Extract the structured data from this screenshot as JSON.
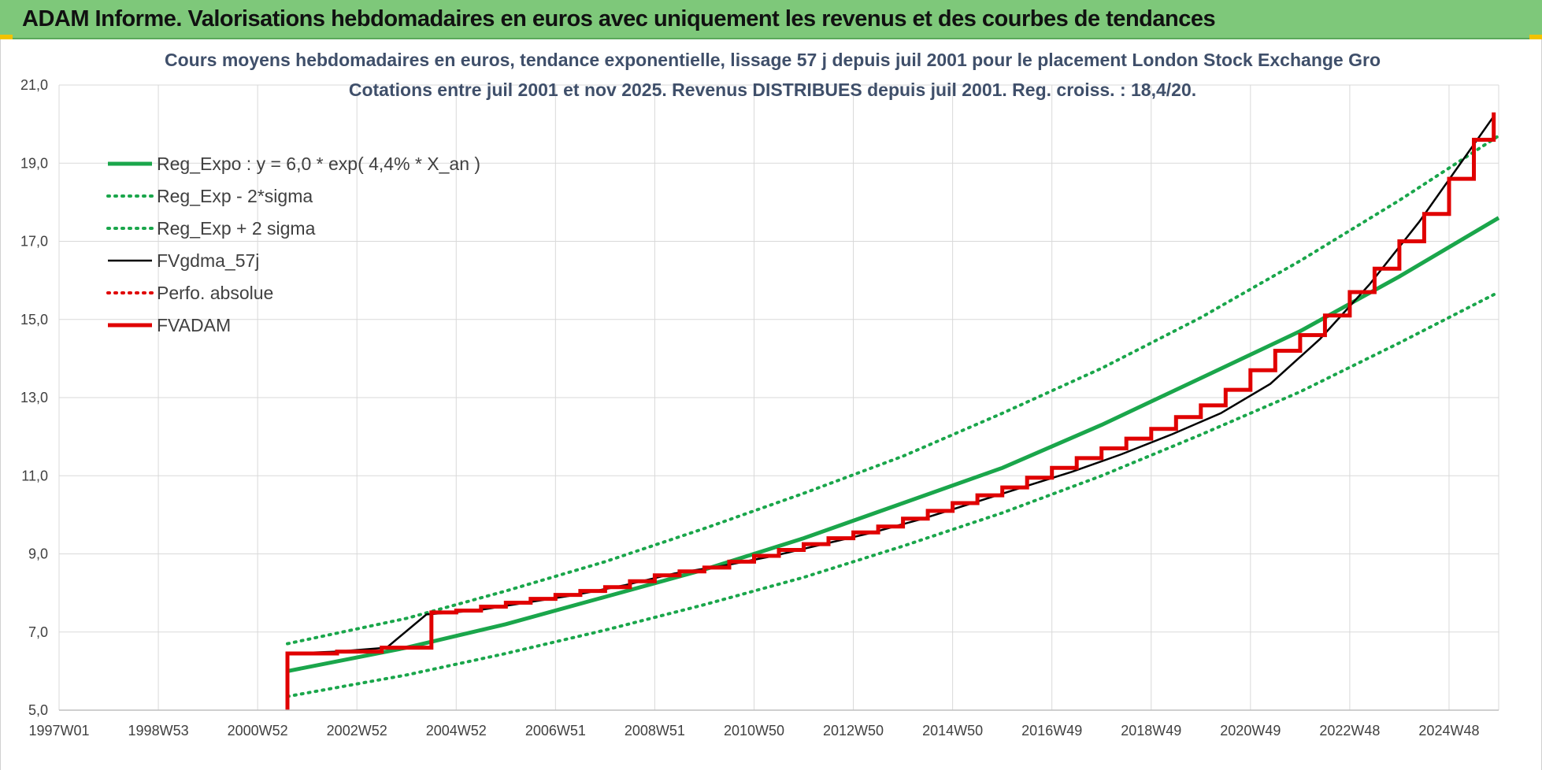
{
  "banner": {
    "title": "ADAM Informe. Valorisations hebdomadaires en euros avec uniquement les revenus et des courbes de tendances"
  },
  "colors": {
    "banner_bg": "#7ec87a",
    "reg_expo": "#1aa64b",
    "black": "#000000",
    "red": "#e00000",
    "grid": "#d9d9d9"
  },
  "chart_data": {
    "type": "line",
    "title": "Cours moyens hebdomadaires en euros, tendance exponentielle, lissage 57 j depuis juil 2001 pour le placement London Stock Exchange Gro",
    "subtitle": "Cotations entre juil 2001 et nov 2025. Revenus DISTRIBUES depuis juil 2001. Reg. croiss. : 18,4/20.",
    "xlabel": "",
    "ylabel": "",
    "xlim": [
      1997.0,
      2026.0
    ],
    "ylim": [
      5.0,
      21.0
    ],
    "grid": true,
    "legend_position": "top-left",
    "y_ticks": [
      "5,0",
      "7,0",
      "9,0",
      "11,0",
      "13,0",
      "15,0",
      "17,0",
      "19,0",
      "21,0"
    ],
    "x_ticks": [
      {
        "label": "1997W01",
        "x": 1997.0
      },
      {
        "label": "1998W53",
        "x": 1999.0
      },
      {
        "label": "2000W52",
        "x": 2001.0
      },
      {
        "label": "2002W52",
        "x": 2003.0
      },
      {
        "label": "2004W52",
        "x": 2005.0
      },
      {
        "label": "2006W51",
        "x": 2007.0
      },
      {
        "label": "2008W51",
        "x": 2009.0
      },
      {
        "label": "2010W50",
        "x": 2011.0
      },
      {
        "label": "2012W50",
        "x": 2013.0
      },
      {
        "label": "2014W50",
        "x": 2015.0
      },
      {
        "label": "2016W49",
        "x": 2017.0
      },
      {
        "label": "2018W49",
        "x": 2019.0
      },
      {
        "label": "2020W49",
        "x": 2021.0
      },
      {
        "label": "2022W48",
        "x": 2023.0
      },
      {
        "label": "2024W48",
        "x": 2025.0
      }
    ],
    "series": [
      {
        "name": "Reg_Expo : y = 6,0 * exp( 4,4% *  X_an )",
        "style": "solid-thick",
        "color": "#1aa64b",
        "x": [
          2001.6,
          2004.0,
          2006.0,
          2008.0,
          2010.0,
          2012.0,
          2014.0,
          2016.0,
          2018.0,
          2020.0,
          2022.0,
          2024.0,
          2026.0
        ],
        "values": [
          6.0,
          6.6,
          7.2,
          7.9,
          8.6,
          9.4,
          10.3,
          11.2,
          12.3,
          13.5,
          14.7,
          16.1,
          17.6
        ]
      },
      {
        "name": "Reg_Exp - 2*sigma",
        "style": "dotted",
        "color": "#1aa64b",
        "x": [
          2001.6,
          2004.0,
          2006.0,
          2008.0,
          2010.0,
          2012.0,
          2014.0,
          2016.0,
          2018.0,
          2020.0,
          2022.0,
          2024.0,
          2026.0
        ],
        "values": [
          5.35,
          5.9,
          6.45,
          7.05,
          7.7,
          8.4,
          9.2,
          10.05,
          11.0,
          12.05,
          13.15,
          14.4,
          15.7
        ]
      },
      {
        "name": "Reg_Exp + 2 sigma",
        "style": "dotted",
        "color": "#1aa64b",
        "x": [
          2001.6,
          2004.0,
          2006.0,
          2008.0,
          2010.0,
          2012.0,
          2014.0,
          2016.0,
          2018.0,
          2020.0,
          2022.0,
          2024.0,
          2026.0
        ],
        "values": [
          6.7,
          7.35,
          8.05,
          8.8,
          9.65,
          10.55,
          11.5,
          12.6,
          13.75,
          15.05,
          16.5,
          18.05,
          19.7
        ]
      },
      {
        "name": "FVgdma_57j",
        "style": "solid-thin",
        "color": "#000000",
        "x": [
          2001.6,
          2002.6,
          2003.6,
          2004.4,
          2005.4,
          2006.4,
          2007.4,
          2008.4,
          2009.4,
          2010.4,
          2011.4,
          2012.4,
          2013.4,
          2014.4,
          2015.4,
          2016.4,
          2017.4,
          2018.4,
          2019.4,
          2020.4,
          2021.4,
          2022.4,
          2023.4,
          2024.4,
          2025.4,
          2025.9
        ],
        "values": [
          6.45,
          6.5,
          6.6,
          7.45,
          7.55,
          7.75,
          7.95,
          8.2,
          8.5,
          8.7,
          8.95,
          9.25,
          9.55,
          9.9,
          10.3,
          10.7,
          11.1,
          11.55,
          12.05,
          12.6,
          13.35,
          14.5,
          15.9,
          17.5,
          19.3,
          20.2
        ]
      },
      {
        "name": "Perfo. absolue",
        "style": "dotted",
        "color": "#e00000",
        "x": [],
        "values": []
      },
      {
        "name": "FVADAM",
        "style": "step-thick",
        "color": "#e00000",
        "x": [
          2001.6,
          2001.6,
          2002.6,
          2003.5,
          2004.5,
          2005.0,
          2005.5,
          2006.0,
          2006.5,
          2007.0,
          2007.5,
          2008.0,
          2008.5,
          2009.0,
          2009.5,
          2010.0,
          2010.5,
          2011.0,
          2011.5,
          2012.0,
          2012.5,
          2013.0,
          2013.5,
          2014.0,
          2014.5,
          2015.0,
          2015.5,
          2016.0,
          2016.5,
          2017.0,
          2017.5,
          2018.0,
          2018.5,
          2019.0,
          2019.5,
          2020.0,
          2020.5,
          2021.0,
          2021.5,
          2022.0,
          2022.5,
          2023.0,
          2023.5,
          2024.0,
          2024.5,
          2025.0,
          2025.5,
          2025.9
        ],
        "values": [
          5.0,
          6.45,
          6.5,
          6.6,
          7.5,
          7.55,
          7.65,
          7.75,
          7.85,
          7.95,
          8.05,
          8.15,
          8.3,
          8.45,
          8.55,
          8.65,
          8.8,
          8.95,
          9.1,
          9.25,
          9.4,
          9.55,
          9.7,
          9.9,
          10.1,
          10.3,
          10.5,
          10.7,
          10.95,
          11.2,
          11.45,
          11.7,
          11.95,
          12.2,
          12.5,
          12.8,
          13.2,
          13.7,
          14.2,
          14.6,
          15.1,
          15.7,
          16.3,
          17.0,
          17.7,
          18.6,
          19.6,
          20.3
        ]
      }
    ]
  }
}
